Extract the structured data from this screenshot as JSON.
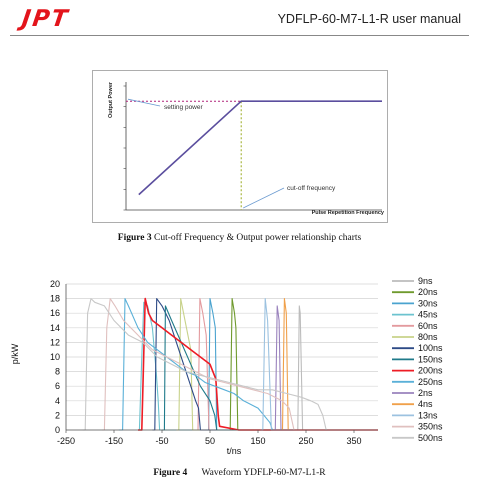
{
  "header": {
    "logo": "JPT",
    "doc_title": "YDFLP-60-M7-L1-R user manual",
    "brand_color": "#e3141b"
  },
  "figure3": {
    "caption_label": "Figure 3",
    "caption_text": "Cut-off Frequency & Output power relationship charts",
    "chart_data": {
      "type": "line",
      "xlabel": "Pulse Repetition Frequency",
      "ylabel": "Output Power",
      "annotations": [
        "setting power",
        "cut-off frequency"
      ],
      "series": [
        {
          "points": [
            [
              0.05,
              0.12
            ],
            [
              0.45,
              0.85
            ],
            [
              1.0,
              0.85
            ]
          ],
          "color": "#5b4e9e"
        }
      ],
      "setting_level": 0.85,
      "cutoff_x": 0.45
    }
  },
  "figure4": {
    "caption_label": "Figure 4",
    "caption_text": "Waveform YDFLP-60-M7-L1-R",
    "chart_data": {
      "type": "line",
      "xlabel": "t/ns",
      "ylabel": "p/kW",
      "xlim": [
        -250,
        400
      ],
      "ylim": [
        0,
        20
      ],
      "xticks": [
        -250,
        -150,
        -50,
        50,
        150,
        250,
        350
      ],
      "yticks": [
        0,
        2,
        4,
        6,
        8,
        10,
        12,
        14,
        16,
        18,
        20
      ],
      "legend_position": "right",
      "series": [
        {
          "name": "9ns",
          "color": "#bcbcbc",
          "points": [
            [
              225,
              0
            ],
            [
              233,
              0
            ],
            [
              236,
              17
            ],
            [
              238,
              16
            ],
            [
              243,
              0
            ],
            [
              400,
              0
            ]
          ]
        },
        {
          "name": "20ns",
          "color": "#6f9a2d",
          "points": [
            [
              85,
              0
            ],
            [
              92,
              0
            ],
            [
              96,
              18
            ],
            [
              101,
              16
            ],
            [
              104,
              14
            ],
            [
              108,
              0
            ],
            [
              400,
              0
            ]
          ]
        },
        {
          "name": "30ns",
          "color": "#4aa3cf",
          "points": [
            [
              40,
              0
            ],
            [
              47,
              0
            ],
            [
              50,
              18
            ],
            [
              56,
              16
            ],
            [
              61,
              14
            ],
            [
              64,
              0
            ],
            [
              400,
              0
            ]
          ]
        },
        {
          "name": "45ns",
          "color": "#6cc3cf",
          "points": [
            [
              -100,
              0
            ],
            [
              -97,
              0
            ],
            [
              -92,
              10
            ],
            [
              -88,
              17.5
            ],
            [
              -80,
              17
            ],
            [
              -70,
              14
            ],
            [
              -62,
              8
            ],
            [
              -58,
              4
            ],
            [
              -55,
              0
            ],
            [
              400,
              0
            ]
          ]
        },
        {
          "name": "60ns",
          "color": "#e39a9e",
          "points": [
            [
              20,
              0
            ],
            [
              25,
              0
            ],
            [
              29,
              18
            ],
            [
              35,
              16
            ],
            [
              42,
              13
            ],
            [
              48,
              0
            ],
            [
              400,
              0
            ]
          ]
        },
        {
          "name": "80ns",
          "color": "#c8d28a",
          "points": [
            [
              -20,
              0
            ],
            [
              -15,
              0
            ],
            [
              -11,
              18
            ],
            [
              -2,
              15
            ],
            [
              10,
              11
            ],
            [
              14,
              0
            ],
            [
              400,
              0
            ]
          ]
        },
        {
          "name": "100ns",
          "color": "#2d4a86",
          "points": [
            [
              -70,
              0
            ],
            [
              -65,
              0
            ],
            [
              -61,
              18
            ],
            [
              -50,
              17
            ],
            [
              -35,
              15
            ],
            [
              -20,
              12
            ],
            [
              -5,
              9
            ],
            [
              10,
              6
            ],
            [
              20,
              4
            ],
            [
              26,
              3
            ],
            [
              30,
              0
            ],
            [
              400,
              0
            ]
          ]
        },
        {
          "name": "150ns",
          "color": "#1f7a8a",
          "points": [
            [
              -50,
              0
            ],
            [
              -45,
              0
            ],
            [
              -43,
              17
            ],
            [
              -30,
              15
            ],
            [
              -10,
              12
            ],
            [
              10,
              9
            ],
            [
              30,
              6
            ],
            [
              50,
              4
            ],
            [
              60,
              2
            ],
            [
              64,
              0
            ],
            [
              400,
              0
            ]
          ]
        },
        {
          "name": "200ns",
          "color": "#ee1c25",
          "points": [
            [
              -100,
              0
            ],
            [
              -92,
              0
            ],
            [
              -85,
              18
            ],
            [
              -78,
              16
            ],
            [
              -70,
              15
            ],
            [
              -50,
              14
            ],
            [
              -30,
              13
            ],
            [
              -10,
              12
            ],
            [
              10,
              11
            ],
            [
              30,
              10
            ],
            [
              50,
              9
            ],
            [
              62,
              7
            ],
            [
              67,
              2
            ],
            [
              70,
              0.5
            ],
            [
              110,
              0
            ],
            [
              400,
              0
            ]
          ]
        },
        {
          "name": "250ns",
          "color": "#5ab0d8",
          "points": [
            [
              -140,
              0
            ],
            [
              -132,
              0
            ],
            [
              -127,
              18
            ],
            [
              -120,
              17
            ],
            [
              -100,
              14
            ],
            [
              -80,
              12
            ],
            [
              -60,
              11
            ],
            [
              -40,
              10
            ],
            [
              -20,
              9
            ],
            [
              0,
              8
            ],
            [
              20,
              7.5
            ],
            [
              40,
              6.5
            ],
            [
              60,
              6
            ],
            [
              80,
              5.5
            ],
            [
              100,
              5
            ],
            [
              120,
              4
            ],
            [
              150,
              3
            ],
            [
              175,
              1
            ],
            [
              180,
              0
            ],
            [
              400,
              0
            ]
          ]
        },
        {
          "name": "2ns",
          "color": "#9a82bd",
          "points": [
            [
              180,
              0
            ],
            [
              186,
              0
            ],
            [
              190,
              17
            ],
            [
              194,
              15
            ],
            [
              198,
              0
            ],
            [
              400,
              0
            ]
          ]
        },
        {
          "name": "4ns",
          "color": "#f0a04a",
          "points": [
            [
              195,
              0
            ],
            [
              201,
              0
            ],
            [
              205,
              18
            ],
            [
              209,
              16
            ],
            [
              213,
              0
            ],
            [
              400,
              0
            ]
          ]
        },
        {
          "name": "13ns",
          "color": "#9cc2e0",
          "points": [
            [
              155,
              0
            ],
            [
              160,
              0
            ],
            [
              165,
              18
            ],
            [
              170,
              15
            ],
            [
              178,
              0
            ],
            [
              400,
              0
            ]
          ]
        },
        {
          "name": "350ns",
          "color": "#e0c0bf",
          "points": [
            [
              -175,
              0
            ],
            [
              -170,
              0
            ],
            [
              -165,
              14
            ],
            [
              -158,
              18
            ],
            [
              -148,
              17
            ],
            [
              -130,
              15
            ],
            [
              -100,
              13
            ],
            [
              -70,
              11
            ],
            [
              -40,
              10
            ],
            [
              -10,
              9
            ],
            [
              20,
              8
            ],
            [
              50,
              7
            ],
            [
              80,
              6.5
            ],
            [
              110,
              6
            ],
            [
              140,
              5.5
            ],
            [
              170,
              5
            ],
            [
              200,
              4
            ],
            [
              215,
              3
            ],
            [
              225,
              0
            ],
            [
              400,
              0
            ]
          ]
        },
        {
          "name": "500ns",
          "color": "#c8c8c8",
          "points": [
            [
              -215,
              0
            ],
            [
              -210,
              0
            ],
            [
              -205,
              16
            ],
            [
              -198,
              18
            ],
            [
              -190,
              17.5
            ],
            [
              -170,
              17
            ],
            [
              -150,
              15
            ],
            [
              -120,
              13
            ],
            [
              -90,
              12
            ],
            [
              -60,
              10
            ],
            [
              -30,
              9
            ],
            [
              0,
              8
            ],
            [
              30,
              7.5
            ],
            [
              60,
              7
            ],
            [
              90,
              6.5
            ],
            [
              120,
              6
            ],
            [
              150,
              5.5
            ],
            [
              180,
              5.5
            ],
            [
              210,
              5
            ],
            [
              240,
              4.5
            ],
            [
              260,
              4
            ],
            [
              275,
              3.5
            ],
            [
              285,
              2
            ],
            [
              292,
              0
            ],
            [
              400,
              0
            ]
          ]
        }
      ]
    }
  }
}
